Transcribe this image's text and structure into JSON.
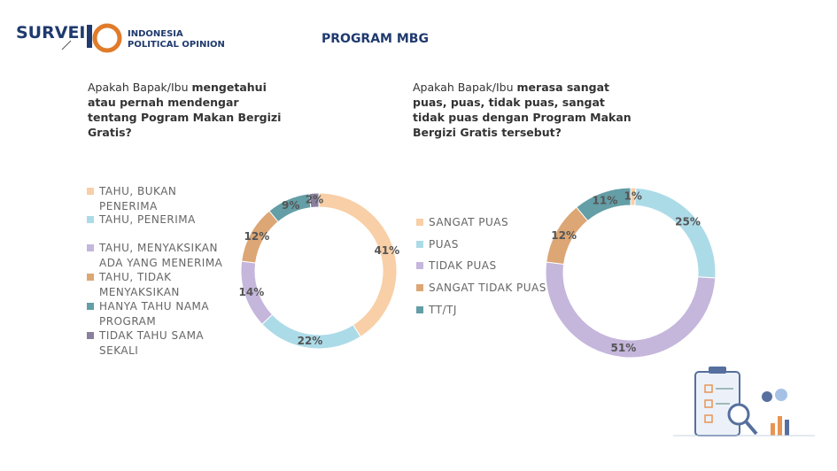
{
  "header": {
    "brand": "SURVEI",
    "org_line1": "INDONESIA",
    "org_line2": "POLITICAL OPINION",
    "title": "PROGRAM MBG"
  },
  "chart_data": [
    {
      "type": "donut",
      "question": [
        "Apakah Bapak/Ibu ",
        "mengetahui atau pernah mendengar tentang Pogram Makan Bergizi Gratis?"
      ],
      "categories": [
        "TAHU, BUKAN PENERIMA",
        "TAHU, PENERIMA",
        "TAHU, MENYAKSIKAN ADA YANG MENERIMA",
        "TAHU, TIDAK MENYAKSIKAN",
        "HANYA TAHU NAMA PROGRAM",
        "TIDAK TAHU SAMA SEKALI"
      ],
      "values": [
        41,
        22,
        14,
        12,
        9,
        2
      ],
      "value_labels": [
        "41%",
        "22%",
        "14%",
        "12%",
        "9%",
        "2%"
      ],
      "colors": [
        "#f8cfa6",
        "#acdbe8",
        "#c5b6dc",
        "#dca675",
        "#649ea6",
        "#8b7f9e"
      ],
      "legend": "left"
    },
    {
      "type": "donut",
      "question": [
        "Apakah Bapak/Ibu ",
        "merasa sangat puas, puas, tidak puas, sangat tidak puas dengan Program Makan Bergizi Gratis tersebut?"
      ],
      "categories": [
        "SANGAT PUAS",
        "PUAS",
        "TIDAK PUAS",
        "SANGAT TIDAK PUAS",
        "TT/TJ"
      ],
      "values": [
        1,
        25,
        51,
        12,
        11
      ],
      "value_labels": [
        "1%",
        "25%",
        "51%",
        "12%",
        "11%"
      ],
      "colors": [
        "#f8cfa6",
        "#acdbe8",
        "#c5b6dc",
        "#dca675",
        "#649ea6"
      ],
      "legend": "left"
    }
  ]
}
